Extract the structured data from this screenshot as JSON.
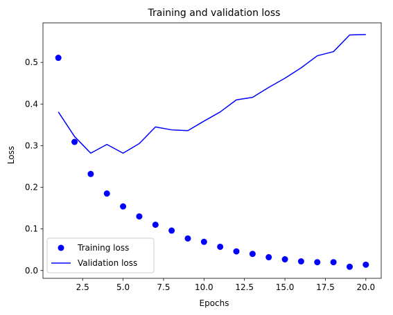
{
  "chart_data": {
    "type": "line",
    "title": "Training and validation loss",
    "xlabel": "Epochs",
    "ylabel": "Loss",
    "xlim": [
      0.05,
      20.95
    ],
    "ylim": [
      -0.0187,
      0.5951
    ],
    "xticks": [
      2.5,
      5.0,
      7.5,
      10.0,
      12.5,
      15.0,
      17.5,
      20.0
    ],
    "xtick_labels": [
      "2.5",
      "5.0",
      "7.5",
      "10.0",
      "12.5",
      "15.0",
      "17.5",
      "20.0"
    ],
    "yticks": [
      0.0,
      0.1,
      0.2,
      0.3,
      0.4,
      0.5
    ],
    "ytick_labels": [
      "0.0",
      "0.1",
      "0.2",
      "0.3",
      "0.4",
      "0.5"
    ],
    "grid": false,
    "legend_position": "bottom-left",
    "x": [
      1,
      2,
      3,
      4,
      5,
      6,
      7,
      8,
      9,
      10,
      11,
      12,
      13,
      14,
      15,
      16,
      17,
      18,
      19,
      20
    ],
    "series": [
      {
        "name": "Training loss",
        "style": "markers",
        "color": "#0000ff",
        "values": [
          0.511,
          0.309,
          0.232,
          0.185,
          0.154,
          0.13,
          0.11,
          0.096,
          0.077,
          0.069,
          0.057,
          0.046,
          0.04,
          0.032,
          0.027,
          0.022,
          0.02,
          0.02,
          0.009,
          0.014
        ]
      },
      {
        "name": "Validation loss",
        "style": "line",
        "color": "#0000ff",
        "values": [
          0.381,
          0.322,
          0.282,
          0.303,
          0.282,
          0.305,
          0.345,
          0.338,
          0.336,
          0.359,
          0.381,
          0.41,
          0.416,
          0.44,
          0.462,
          0.487,
          0.516,
          0.526,
          0.566,
          0.567
        ]
      }
    ]
  }
}
